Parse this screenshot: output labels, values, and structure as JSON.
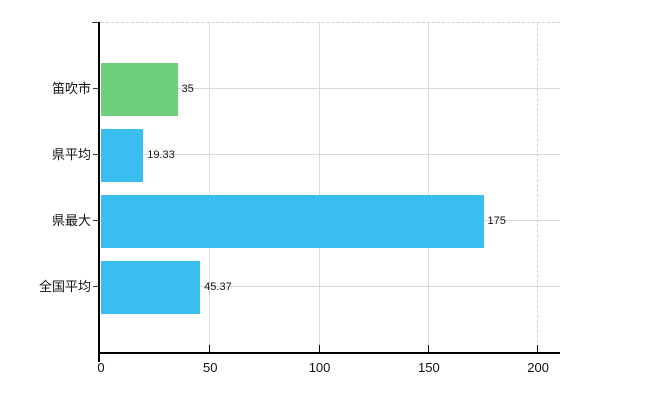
{
  "chart_data": {
    "type": "bar",
    "orientation": "horizontal",
    "title": "",
    "xlabel": "",
    "ylabel": "",
    "categories": [
      "笛吹市",
      "県平均",
      "県最大",
      "全国平均"
    ],
    "values": [
      35,
      19.33,
      175,
      45.37
    ],
    "value_labels": [
      "35",
      "19.33",
      "175",
      "45.37"
    ],
    "bar_colors": [
      "#6ecf7c",
      "#3abef0",
      "#3abef0",
      "#3abef0"
    ],
    "xlim": [
      0,
      210
    ],
    "x_ticks": [
      0,
      50,
      100,
      150,
      200
    ],
    "x_tick_labels": [
      "0",
      "50",
      "100",
      "150",
      "200"
    ],
    "dashed_gridline_at": 200,
    "grid": true,
    "legend": false,
    "plot_border_top_dashed": true
  },
  "colors": {
    "background": "#ffffff",
    "axis": "#000000",
    "grid": "#d6ddd3",
    "dashed_line": "#d9ccd6",
    "text": "#111111"
  }
}
